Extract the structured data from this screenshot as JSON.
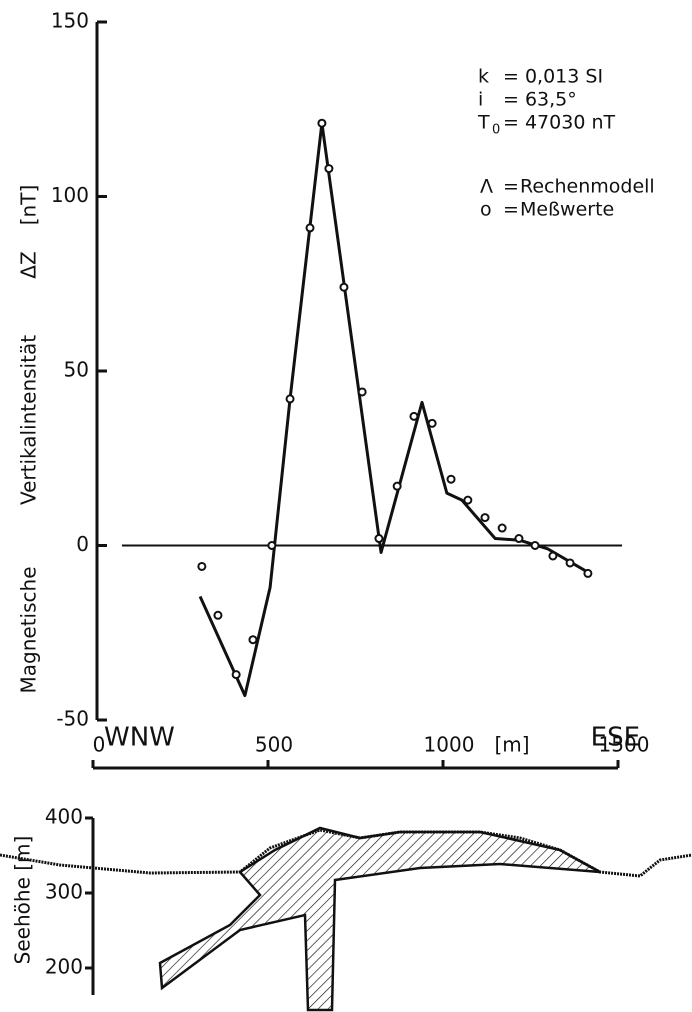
{
  "chart_data": [
    {
      "type": "profile",
      "ylabel": [
        "Magnetische",
        "Vertikalintensität",
        "ΔZ",
        "[nT]"
      ],
      "xlabel": "[m]",
      "direction_left": "WNW",
      "direction_right": "ESE",
      "xlim": [
        0,
        1500
      ],
      "xticks": [
        0,
        500,
        1000,
        1500
      ],
      "ylim": [
        -50,
        150
      ],
      "yticks": [
        -50,
        0,
        50,
        100,
        150
      ],
      "parameters": [
        {
          "symbol": "k",
          "text": "= 0,013 SI"
        },
        {
          "symbol": "i",
          "text": "= 63,5°"
        },
        {
          "symbol": "T",
          "subscript": "0",
          "text": "= 47030 nT"
        }
      ],
      "legend_separator": "=",
      "series": [
        {
          "name": "Rechenmodell",
          "symbol": "Λ",
          "style": "line",
          "color": "#111",
          "x": [
            306,
            434,
            506,
            563,
            654,
            823,
            940,
            1011,
            1054,
            1149,
            1220,
            1300,
            1420
          ],
          "values": [
            -14.6,
            -43,
            -12,
            42,
            121,
            -2,
            41,
            15,
            13,
            2,
            1.5,
            -1,
            -8
          ]
        },
        {
          "name": "Meßwerte",
          "symbol": "o",
          "style": "markers",
          "color": "#111",
          "x": [
            311,
            357,
            409,
            457,
            511,
            563,
            620,
            654,
            674,
            717,
            769,
            817,
            869,
            917,
            969,
            1023,
            1071,
            1120,
            1169,
            1217,
            1263,
            1314,
            1363,
            1414
          ],
          "values": [
            -6,
            -20,
            -37,
            -27,
            0,
            42,
            91,
            121,
            108,
            74,
            44,
            2,
            17,
            37,
            35,
            19,
            13,
            8,
            5,
            2,
            0,
            -3,
            -5,
            -8
          ]
        }
      ]
    },
    {
      "type": "section",
      "ylabel": "Seehöhe [m]",
      "ylim": [
        200,
        400
      ],
      "yticks": [
        200,
        300,
        400
      ]
    }
  ]
}
